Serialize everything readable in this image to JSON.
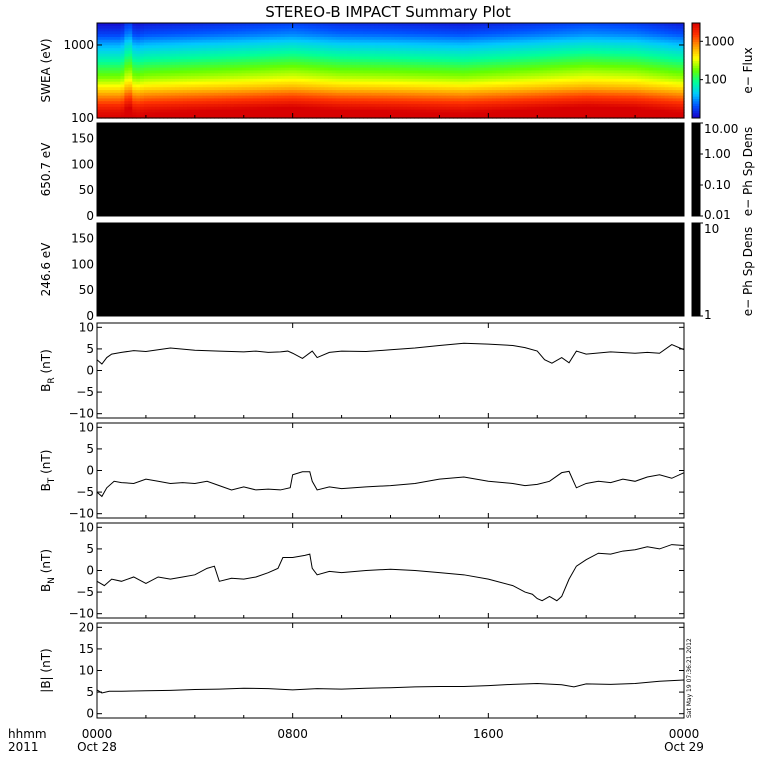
{
  "title": "STEREO-B IMPACT Summary Plot",
  "footer": {
    "row_label_top": "hhmm",
    "row_label_bottom": "2011",
    "timestamp": "Sat May 19 07:36:21 2012"
  },
  "colors": {
    "line": "#000000",
    "panel_fill_dark": "#000000",
    "background": "#ffffff"
  },
  "chart_data": [
    {
      "id": "swea",
      "type": "heatmap",
      "ylabel": "SWEA (eV)",
      "scale": "log",
      "ylim": [
        100,
        2000
      ],
      "yticks": [
        100,
        1000
      ],
      "ytick_labels": [
        "100",
        "1000"
      ],
      "colorbar": {
        "label": "e− Flux",
        "scale": "log",
        "range": [
          10,
          3000
        ],
        "ticks": [
          100,
          1000
        ],
        "tick_labels": [
          "100",
          "1000"
        ],
        "colormap": [
          "#1a00c8",
          "#0050ff",
          "#00c8ff",
          "#00ff9a",
          "#64ff00",
          "#ffff00",
          "#ffa000",
          "#ff3200",
          "#d80000"
        ]
      },
      "profile_energy_ev": [
        100,
        120,
        150,
        200,
        260,
        350,
        500,
        700,
        1000,
        1400,
        2000
      ],
      "profile_log_flux": [
        3.45,
        3.4,
        3.2,
        2.9,
        2.6,
        2.3,
        2.05,
        1.8,
        1.55,
        1.25,
        1.05
      ],
      "profile_x_time_hours": [
        0,
        1,
        1.3,
        1.55,
        2,
        5,
        8,
        10,
        12,
        15,
        18,
        20,
        22,
        24
      ],
      "profile_x_boost": [
        0,
        0,
        0.25,
        0,
        0.05,
        0.12,
        0.2,
        0.12,
        0.1,
        0.05,
        0.15,
        0.22,
        0.18,
        0.05
      ]
    },
    {
      "id": "pad-650",
      "type": "heatmap",
      "ylabel": "650.7 eV",
      "ylim": [
        0,
        180
      ],
      "yticks": [
        0,
        50,
        100,
        150
      ],
      "ytick_labels": [
        "0",
        "50",
        "100",
        "150"
      ],
      "fill": "#000000",
      "colorbar": {
        "label": "e− Ph Sp Dens",
        "scale": "log",
        "range": [
          0.01,
          10
        ],
        "ticks": [
          0.01,
          0.1,
          1,
          10
        ],
        "tick_labels": [
          "0.01",
          "0.10",
          "1.00",
          "10.00"
        ]
      }
    },
    {
      "id": "pad-246",
      "type": "heatmap",
      "ylabel": "246.6 eV",
      "ylim": [
        0,
        180
      ],
      "yticks": [
        0,
        50,
        100,
        150
      ],
      "ytick_labels": [
        "0",
        "50",
        "100",
        "150"
      ],
      "fill": "#000000",
      "colorbar": {
        "label": "e− Ph Sp Dens",
        "scale": "log",
        "range": [
          1,
          10
        ],
        "ticks": [
          1,
          10
        ],
        "tick_labels": [
          "1",
          "10"
        ]
      }
    },
    {
      "id": "br",
      "type": "line",
      "ylabel": "B",
      "ylabel_sub": "R",
      "ylabel_unit": "(nT)",
      "ylim": [
        -11,
        11
      ],
      "yticks": [
        -10,
        -5,
        0,
        5,
        10
      ],
      "ytick_labels": [
        "−10",
        "−5",
        "0",
        "5",
        "10"
      ],
      "x": [
        0,
        0.2,
        0.4,
        0.6,
        1.0,
        1.5,
        2.0,
        3.0,
        4.0,
        5.0,
        6.0,
        6.5,
        7.0,
        7.5,
        7.8,
        8.0,
        8.4,
        8.8,
        9.0,
        9.5,
        10,
        11,
        12,
        13,
        14,
        15,
        16,
        17,
        17.5,
        18.0,
        18.3,
        18.6,
        19.0,
        19.3,
        19.6,
        20,
        21,
        22,
        22.5,
        23,
        23.5,
        24
      ],
      "values": [
        2.5,
        1.5,
        3.0,
        3.8,
        4.2,
        4.6,
        4.4,
        5.2,
        4.7,
        4.5,
        4.3,
        4.5,
        4.2,
        4.3,
        4.5,
        4.0,
        2.8,
        4.5,
        3.0,
        4.2,
        4.5,
        4.4,
        4.8,
        5.2,
        5.8,
        6.3,
        6.1,
        5.8,
        5.3,
        4.5,
        2.5,
        1.7,
        3.0,
        1.8,
        4.5,
        3.8,
        4.3,
        4.0,
        4.2,
        4.0,
        6.0,
        4.8
      ]
    },
    {
      "id": "bt",
      "type": "line",
      "ylabel": "B",
      "ylabel_sub": "T",
      "ylabel_unit": "(nT)",
      "ylim": [
        -11,
        11
      ],
      "yticks": [
        -10,
        -5,
        0,
        5,
        10
      ],
      "ytick_labels": [
        "−10",
        "−5",
        "0",
        "5",
        "10"
      ],
      "x": [
        0,
        0.2,
        0.4,
        0.7,
        1.0,
        1.5,
        2.0,
        2.5,
        3.0,
        3.5,
        4.0,
        4.5,
        5.0,
        5.5,
        6.0,
        6.5,
        7.0,
        7.5,
        7.9,
        8.0,
        8.4,
        8.7,
        8.8,
        9.0,
        9.5,
        10,
        11,
        12,
        13,
        14,
        15,
        16,
        17,
        17.5,
        18.0,
        18.5,
        19.0,
        19.3,
        19.6,
        20,
        20.5,
        21,
        21.5,
        22,
        22.5,
        23,
        23.5,
        24
      ],
      "values": [
        -5.0,
        -6.0,
        -4.0,
        -2.5,
        -2.8,
        -3.0,
        -2.0,
        -2.5,
        -3.0,
        -2.8,
        -3.0,
        -2.5,
        -3.5,
        -4.5,
        -3.8,
        -4.5,
        -4.3,
        -4.5,
        -4.0,
        -1.0,
        -0.3,
        -0.3,
        -2.5,
        -4.5,
        -3.8,
        -4.2,
        -3.8,
        -3.5,
        -3.0,
        -2.0,
        -1.5,
        -2.5,
        -3.0,
        -3.5,
        -3.2,
        -2.5,
        -0.5,
        -0.2,
        -4.0,
        -3.0,
        -2.5,
        -2.8,
        -2.0,
        -2.5,
        -1.5,
        -1.0,
        -1.8,
        -0.5
      ]
    },
    {
      "id": "bn",
      "type": "line",
      "ylabel": "B",
      "ylabel_sub": "N",
      "ylabel_unit": "(nT)",
      "ylim": [
        -11,
        11
      ],
      "yticks": [
        -10,
        -5,
        0,
        5,
        10
      ],
      "ytick_labels": [
        "−10",
        "−5",
        "0",
        "5",
        "10"
      ],
      "x": [
        0,
        0.3,
        0.6,
        1.0,
        1.5,
        2.0,
        2.5,
        3.0,
        3.5,
        4.0,
        4.5,
        4.8,
        5.0,
        5.5,
        6.0,
        6.5,
        7.0,
        7.4,
        7.6,
        8.0,
        8.5,
        8.7,
        8.8,
        9.0,
        9.5,
        10,
        11,
        12,
        13,
        14,
        15,
        16,
        17,
        17.5,
        17.8,
        18.0,
        18.2,
        18.5,
        18.8,
        19.0,
        19.3,
        19.6,
        20,
        20.5,
        21,
        21.5,
        22,
        22.5,
        23,
        23.5,
        24
      ],
      "values": [
        -2.5,
        -3.5,
        -2.0,
        -2.5,
        -1.5,
        -3.0,
        -1.5,
        -2.0,
        -1.5,
        -1.0,
        0.5,
        1.0,
        -2.5,
        -1.8,
        -2.0,
        -1.5,
        -0.5,
        0.5,
        3.0,
        3.0,
        3.5,
        3.8,
        0.5,
        -1.0,
        -0.2,
        -0.5,
        0.0,
        0.3,
        0.0,
        -0.5,
        -1.0,
        -2.0,
        -3.5,
        -5.0,
        -5.5,
        -6.5,
        -7.0,
        -6.0,
        -7.0,
        -6.0,
        -2.0,
        1.0,
        2.5,
        4.0,
        3.8,
        4.5,
        4.8,
        5.5,
        5.0,
        6.0,
        5.8
      ]
    },
    {
      "id": "bmag",
      "type": "line",
      "ylabel": "|B| (nT)",
      "ylim": [
        -1,
        21
      ],
      "yticks": [
        0,
        5,
        10,
        15,
        20
      ],
      "ytick_labels": [
        "0",
        "5",
        "10",
        "15",
        "20"
      ],
      "x": [
        0,
        0.2,
        0.5,
        1.0,
        2.0,
        3.0,
        4.0,
        5.0,
        6.0,
        7.0,
        8.0,
        9.0,
        10,
        11,
        12,
        13,
        14,
        15,
        16,
        17,
        18,
        19,
        19.5,
        20,
        21,
        22,
        23,
        24
      ],
      "values": [
        5.5,
        4.8,
        5.2,
        5.2,
        5.3,
        5.4,
        5.6,
        5.7,
        5.9,
        5.8,
        5.5,
        5.8,
        5.7,
        5.9,
        6.0,
        6.2,
        6.3,
        6.3,
        6.5,
        6.8,
        7.0,
        6.7,
        6.2,
        6.9,
        6.8,
        7.0,
        7.5,
        7.8
      ]
    }
  ],
  "time_axis": {
    "range_hours": [
      0,
      24
    ],
    "ticks": [
      {
        "hours": 0,
        "hhmm": "0000",
        "date": "Oct 28"
      },
      {
        "hours": 8,
        "hhmm": "0800",
        "date": ""
      },
      {
        "hours": 16,
        "hhmm": "1600",
        "date": ""
      },
      {
        "hours": 24,
        "hhmm": "0000",
        "date": "Oct 29"
      }
    ]
  }
}
